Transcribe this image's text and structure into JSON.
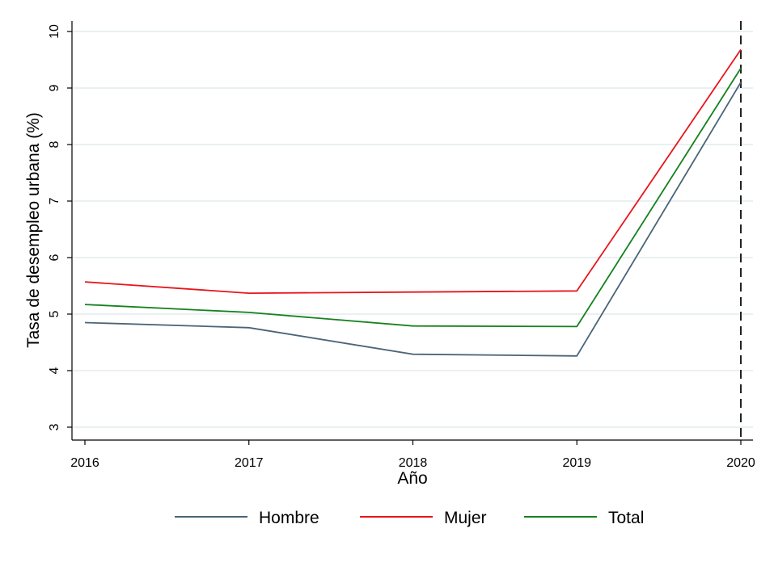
{
  "chart_data": {
    "type": "line",
    "title": "",
    "xlabel": "Año",
    "ylabel": "Tasa de desempleo urbana (%)",
    "x": [
      "2016",
      "2017",
      "2018",
      "2019",
      "2020"
    ],
    "xlim": [
      2016,
      2020
    ],
    "ylim": [
      2.8,
      10.2
    ],
    "yticks": [
      "3",
      "4",
      "5",
      "6",
      "7",
      "8",
      "9",
      "10"
    ],
    "grid": true,
    "legend_position": "bottom",
    "reference_line": {
      "x": "2020",
      "style": "dashed"
    },
    "series": [
      {
        "name": "Hombre",
        "color": "#4a6478",
        "values": [
          4.85,
          4.76,
          4.29,
          4.26,
          9.1
        ]
      },
      {
        "name": "Mujer",
        "color": "#e8141b",
        "values": [
          5.57,
          5.37,
          5.39,
          5.41,
          9.68
        ]
      },
      {
        "name": "Total",
        "color": "#14821e",
        "values": [
          5.17,
          5.03,
          4.79,
          4.78,
          9.35
        ]
      }
    ]
  }
}
